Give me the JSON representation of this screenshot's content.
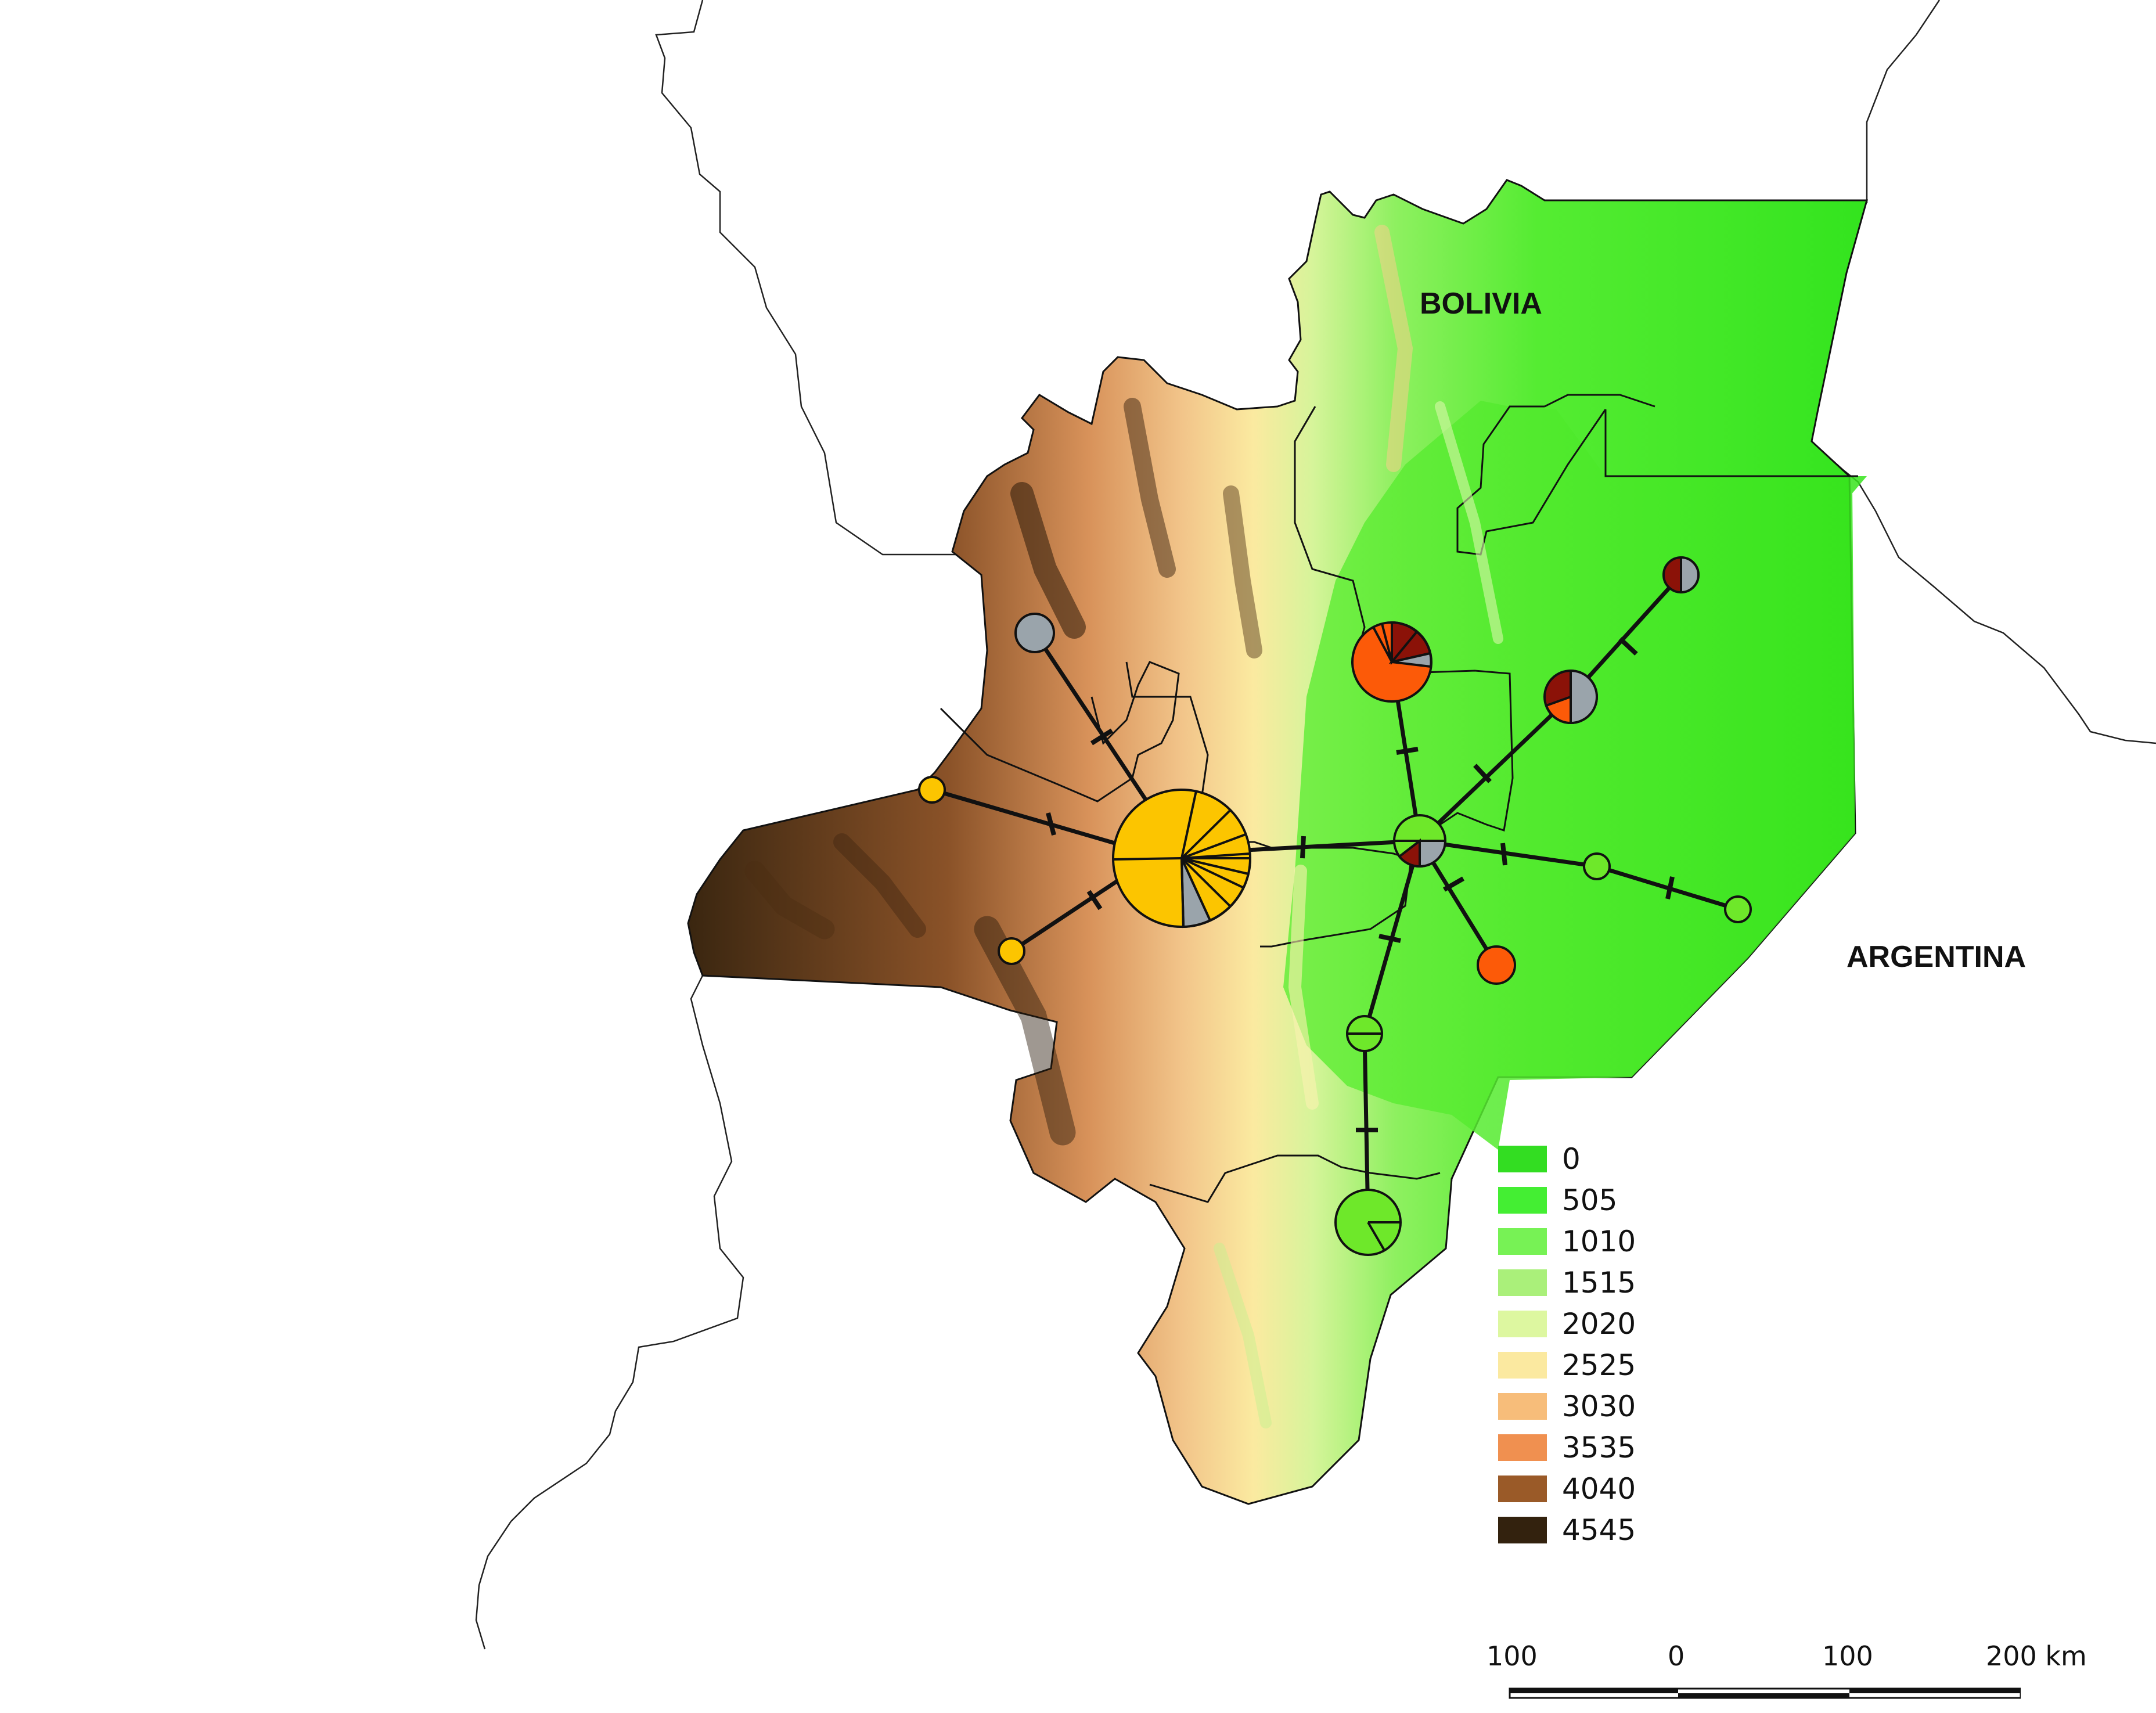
{
  "map": {
    "labels": {
      "bolivia": "BOLIVIA",
      "argentina": "ARGENTINA"
    },
    "legend": {
      "items": [
        {
          "label": "0",
          "color": "#33dd22"
        },
        {
          "label": "505",
          "color": "#44ee33"
        },
        {
          "label": "1010",
          "color": "#77f255"
        },
        {
          "label": "1515",
          "color": "#aaf07a"
        },
        {
          "label": "2020",
          "color": "#ddf7a0"
        },
        {
          "label": "2525",
          "color": "#fbe9a0"
        },
        {
          "label": "3030",
          "color": "#f7bd7a"
        },
        {
          "label": "3535",
          "color": "#f09050"
        },
        {
          "label": "4040",
          "color": "#9a5a28"
        },
        {
          "label": "4545",
          "color": "#33220e"
        }
      ]
    },
    "scale": {
      "labels": [
        "100",
        "0",
        "100",
        "200 km"
      ]
    },
    "haplotype_colors": {
      "yellow": "#fcc500",
      "gray": "#9aa4ab",
      "orange": "#fc5a08",
      "darkred": "#8b1208",
      "green": "#6ee82a"
    }
  }
}
